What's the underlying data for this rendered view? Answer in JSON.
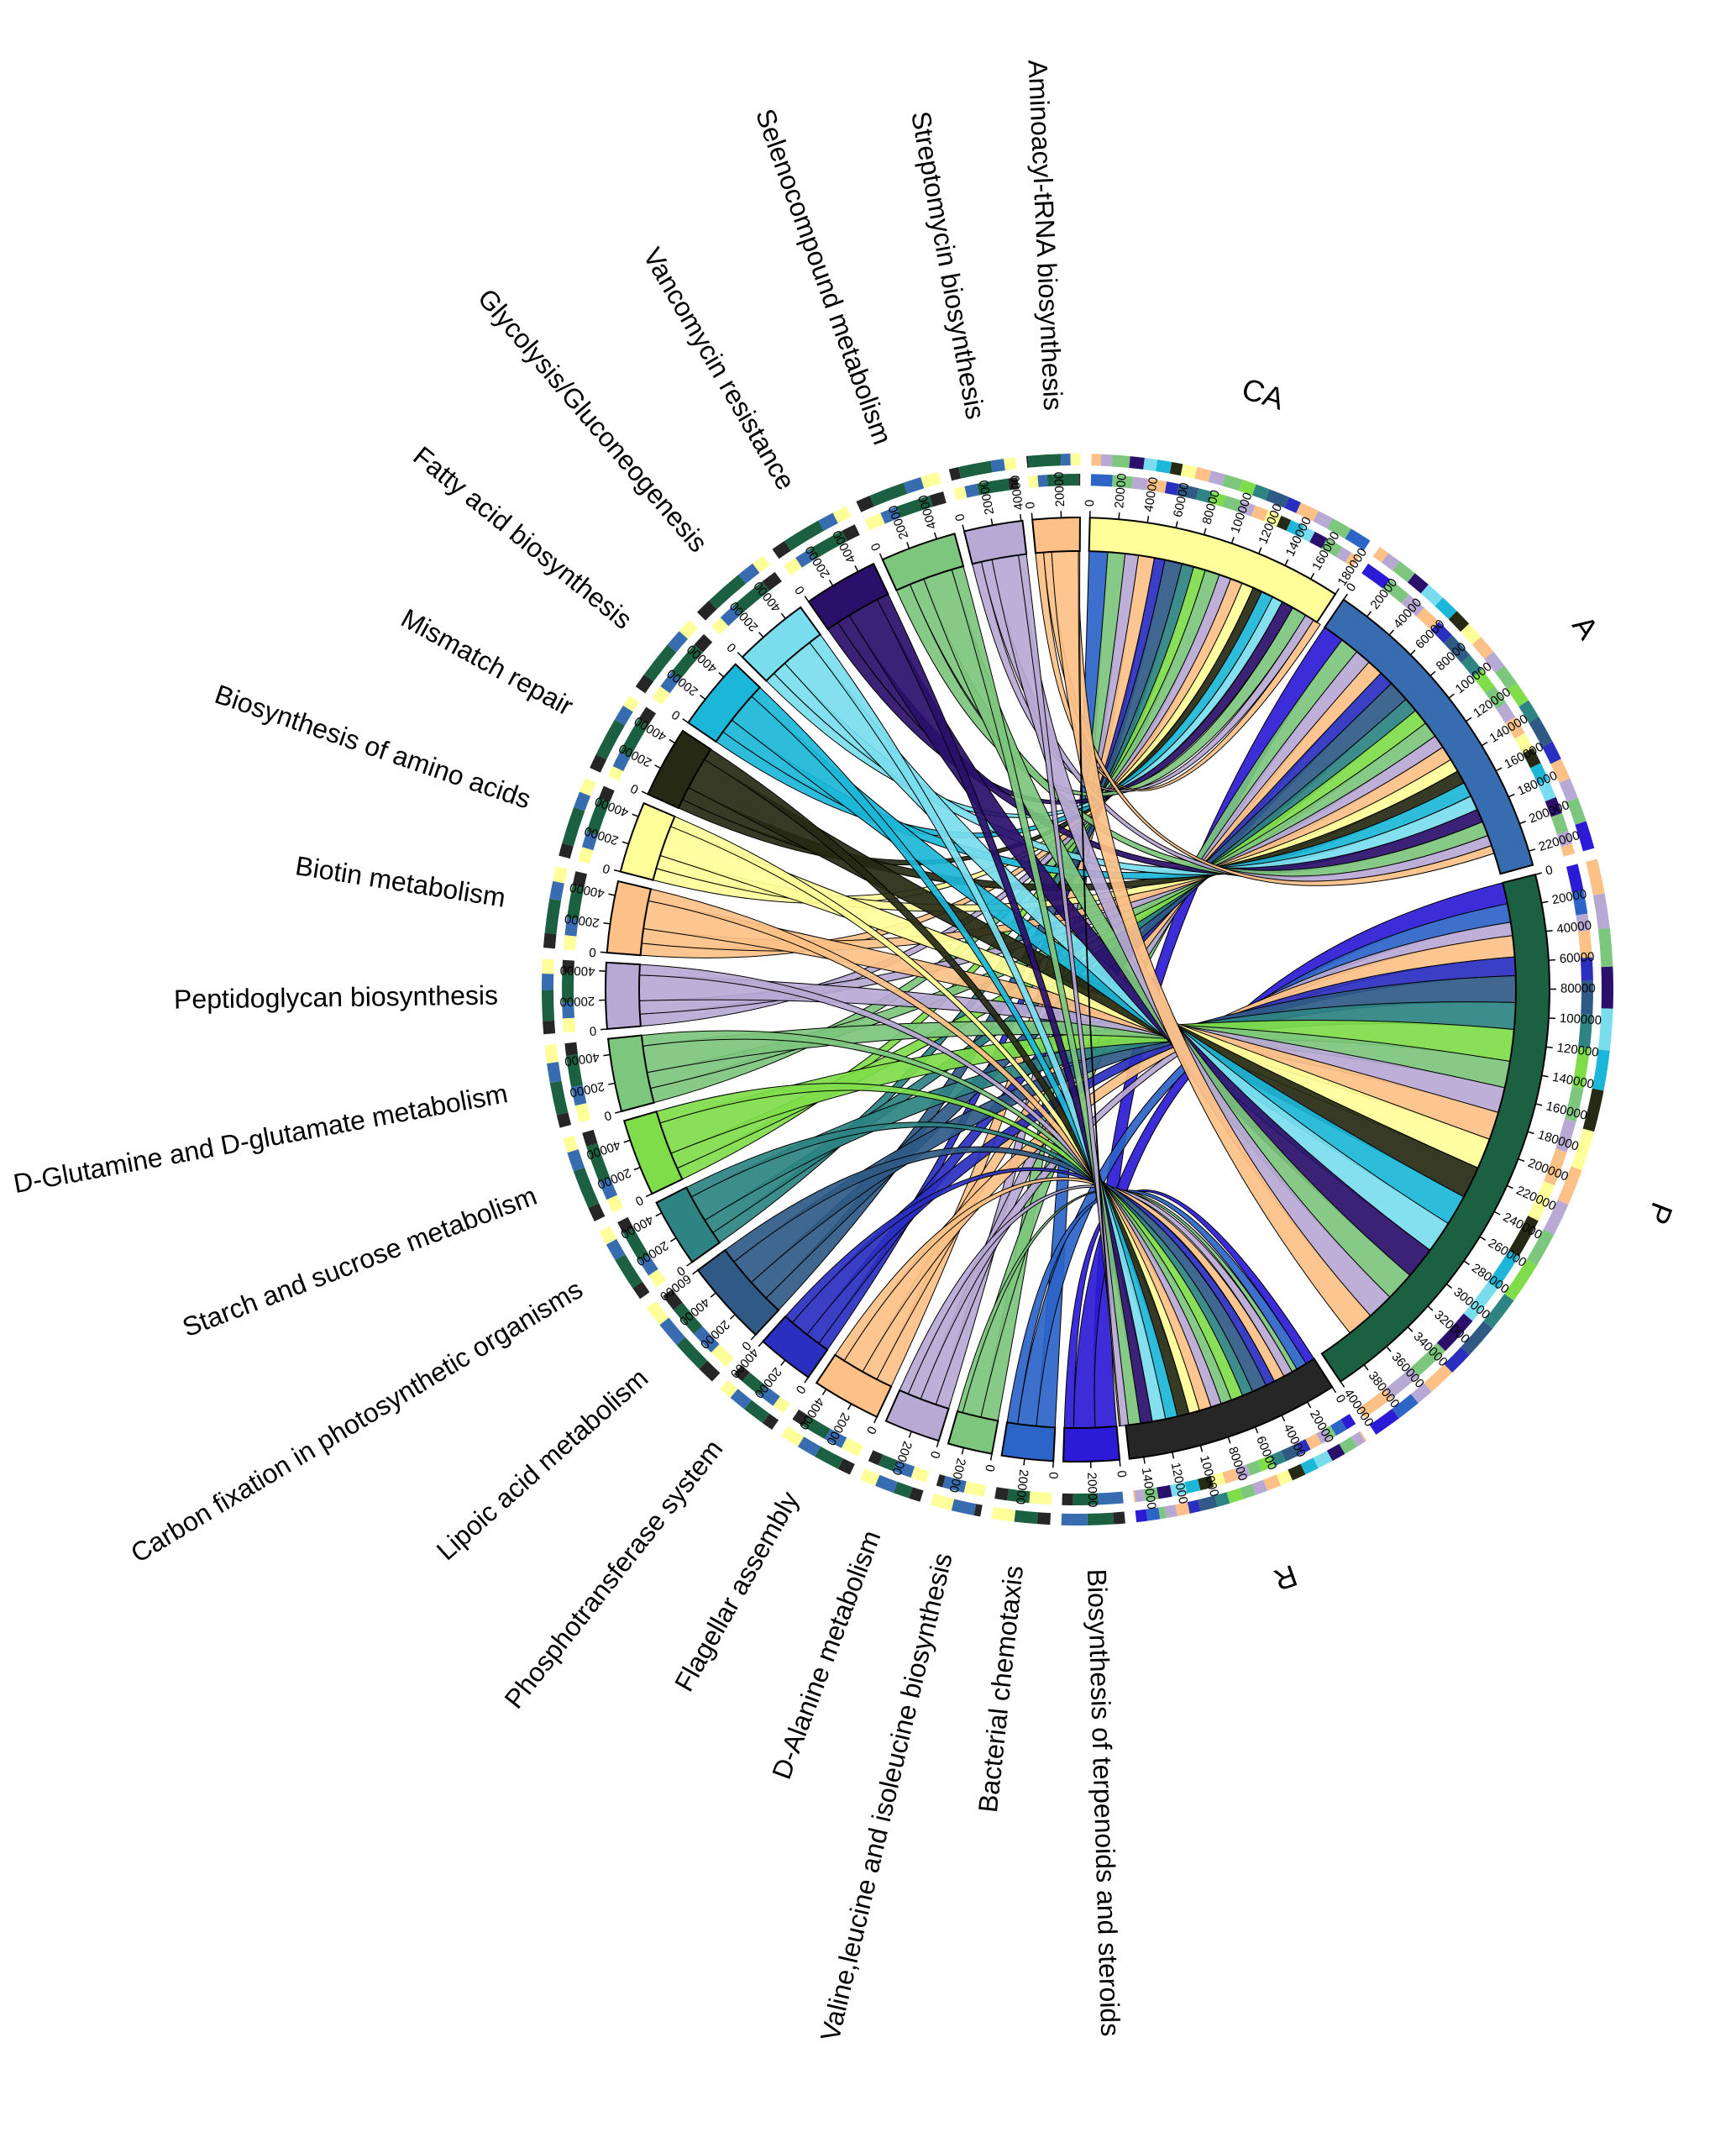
{
  "chart_data": {
    "type": "chord",
    "title": "",
    "samples": [
      {
        "name": "CA",
        "total": 180000,
        "color": "#FFFF99",
        "tick_step": 20000,
        "flows": [
          26000,
          0,
          14000,
          13000,
          10000,
          12000,
          8000,
          13000,
          9000,
          9000,
          11000,
          9000,
          9000,
          9000,
          7000,
          9000,
          8000,
          9000,
          11000,
          7000,
          6000
        ]
      },
      {
        "name": "A",
        "total": 230000,
        "color": "#386CB0",
        "tick_step": 20000,
        "flows": [
          26000,
          16000,
          0,
          14000,
          12000,
          12000,
          11000,
          16000,
          11000,
          12000,
          12000,
          10000,
          11000,
          10000,
          10000,
          11000,
          11000,
          10000,
          11000,
          8000,
          6000
        ]
      },
      {
        "name": "P",
        "total": 400000,
        "color": "#1B6041",
        "tick_step": 20000,
        "flows": [
          26000,
          16000,
          14000,
          0,
          10000,
          16000,
          14000,
          20000,
          20000,
          24000,
          20000,
          19000,
          21000,
          23000,
          24000,
          23000,
          24000,
          24000,
          22000,
          20000,
          20000
        ]
      },
      {
        "name": "R",
        "total": 150000,
        "color": "#262626",
        "tick_step": 20000,
        "flows": [
          5000,
          7000,
          8000,
          4000,
          7000,
          8000,
          7000,
          11000,
          8000,
          9000,
          8000,
          8000,
          9000,
          8000,
          9000,
          9000,
          10000,
          9000,
          9000,
          6000,
          1000
        ]
      }
    ],
    "pathways": [
      {
        "name": "Biosynthesis of terpenoids and steroids",
        "color": "#2B1BD6",
        "total": 68000
      },
      {
        "name": "Bacterial chemotaxis",
        "color": "#2C64C8",
        "total": 66000
      },
      {
        "name": "Valine,leucine and isoleucine biosynthesis",
        "color": "#7DC67D",
        "total": 64000
      },
      {
        "name": "D-Alanine metabolism",
        "color": "#B7A8D4",
        "total": 62000
      },
      {
        "name": "Flagellar assembly",
        "color": "#FDC086",
        "total": 60000
      },
      {
        "name": "Phosphotransferase system",
        "color": "#2A2FC0",
        "total": 58000
      },
      {
        "name": "Lipoic acid metabolism",
        "color": "#2F5A86",
        "total": 56000
      },
      {
        "name": "Carbon fixation in photosynthetic organisms",
        "color": "#2E8383",
        "total": 54000
      },
      {
        "name": "Starch and sucrose metabolism",
        "color": "#7FDD4A",
        "total": 52000
      },
      {
        "name": "D-Glutamine and D-glutamate metabolism",
        "color": "#7DC67D",
        "total": 50000
      },
      {
        "name": "Peptidoglycan biosynthesis",
        "color": "#B7A8D4",
        "total": 48000
      },
      {
        "name": "Biotin metabolism",
        "color": "#FDC086",
        "total": 46000
      },
      {
        "name": "Biosynthesis of amino acids",
        "color": "#FFFF99",
        "total": 44000
      },
      {
        "name": "Mismatch repair",
        "color": "#262A14",
        "total": 42000
      },
      {
        "name": "Fatty acid biosynthesis",
        "color": "#1CB6D8",
        "total": 40000
      },
      {
        "name": "Glycolysis/Gluconeogenesis",
        "color": "#7ADDEE",
        "total": 38000
      },
      {
        "name": "Vancomycin resistance",
        "color": "#2A0F6B",
        "total": 36000
      },
      {
        "name": "Selenocompound metabolism",
        "color": "#7DC67D",
        "total": 34000
      },
      {
        "name": "Streptomycin biosynthesis",
        "color": "#B7A8D4",
        "total": 32000
      },
      {
        "name": "Aminoacyl-tRNA biosynthesis",
        "color": "#FDC086",
        "total": 30000
      }
    ]
  }
}
